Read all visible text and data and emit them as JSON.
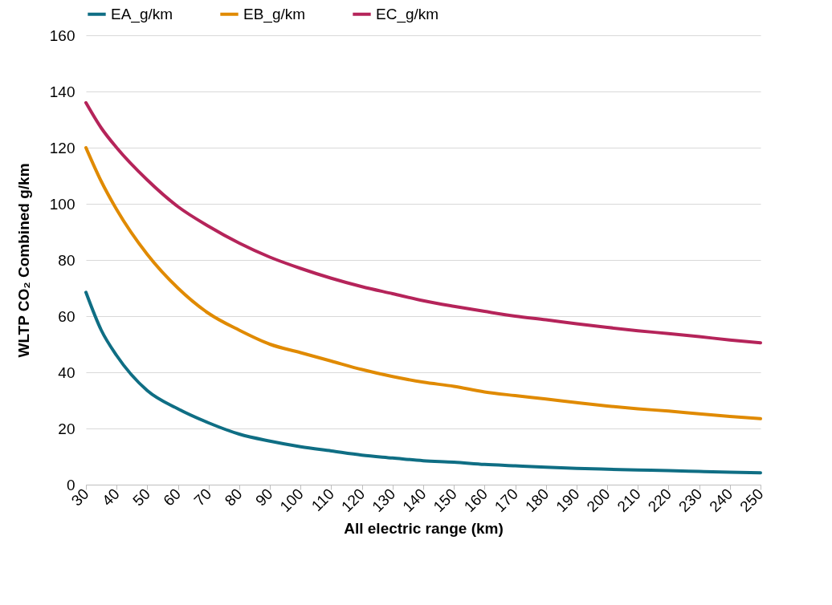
{
  "chart_data": {
    "type": "line",
    "xlabel": "All electric range (km)",
    "ylabel": "WLTP CO₂ Combined g/km",
    "x": [
      30,
      35,
      40,
      50,
      60,
      70,
      80,
      90,
      100,
      110,
      120,
      130,
      140,
      150,
      160,
      170,
      180,
      190,
      200,
      210,
      220,
      230,
      240,
      250
    ],
    "series": [
      {
        "name": "EA_g/km",
        "color": "#0f6e84",
        "values": [
          68.5,
          55,
          46,
          33.5,
          27,
          22,
          18,
          15.5,
          13.5,
          12,
          10.5,
          9.5,
          8.5,
          8,
          7.2,
          6.7,
          6.2,
          5.8,
          5.5,
          5.2,
          5,
          4.7,
          4.4,
          4.2
        ]
      },
      {
        "name": "EB_g/km",
        "color": "#e08a00",
        "values": [
          120,
          108,
          98,
          82,
          70,
          61,
          55,
          50,
          47,
          44,
          41,
          38.5,
          36.5,
          35,
          33,
          31.7,
          30.5,
          29.2,
          28,
          27,
          26.2,
          25.2,
          24.3,
          23.5
        ]
      },
      {
        "name": "EC_g/km",
        "color": "#b5245a",
        "values": [
          136,
          127,
          120,
          108.5,
          99,
          92,
          86,
          81,
          77,
          73.5,
          70.5,
          68,
          65.5,
          63.5,
          61.7,
          60,
          58.7,
          57.3,
          56,
          54.8,
          53.8,
          52.7,
          51.5,
          50.5
        ]
      }
    ],
    "xlim": [
      30,
      250
    ],
    "xticks": [
      30,
      40,
      50,
      60,
      70,
      80,
      90,
      100,
      110,
      120,
      130,
      140,
      150,
      160,
      170,
      180,
      190,
      200,
      210,
      220,
      230,
      240,
      250
    ],
    "ylim": [
      0,
      160
    ],
    "yticks": [
      0,
      20,
      40,
      60,
      80,
      100,
      120,
      140,
      160
    ],
    "grid": "y",
    "legend": "top",
    "marker": "none",
    "line_style": "solid"
  }
}
